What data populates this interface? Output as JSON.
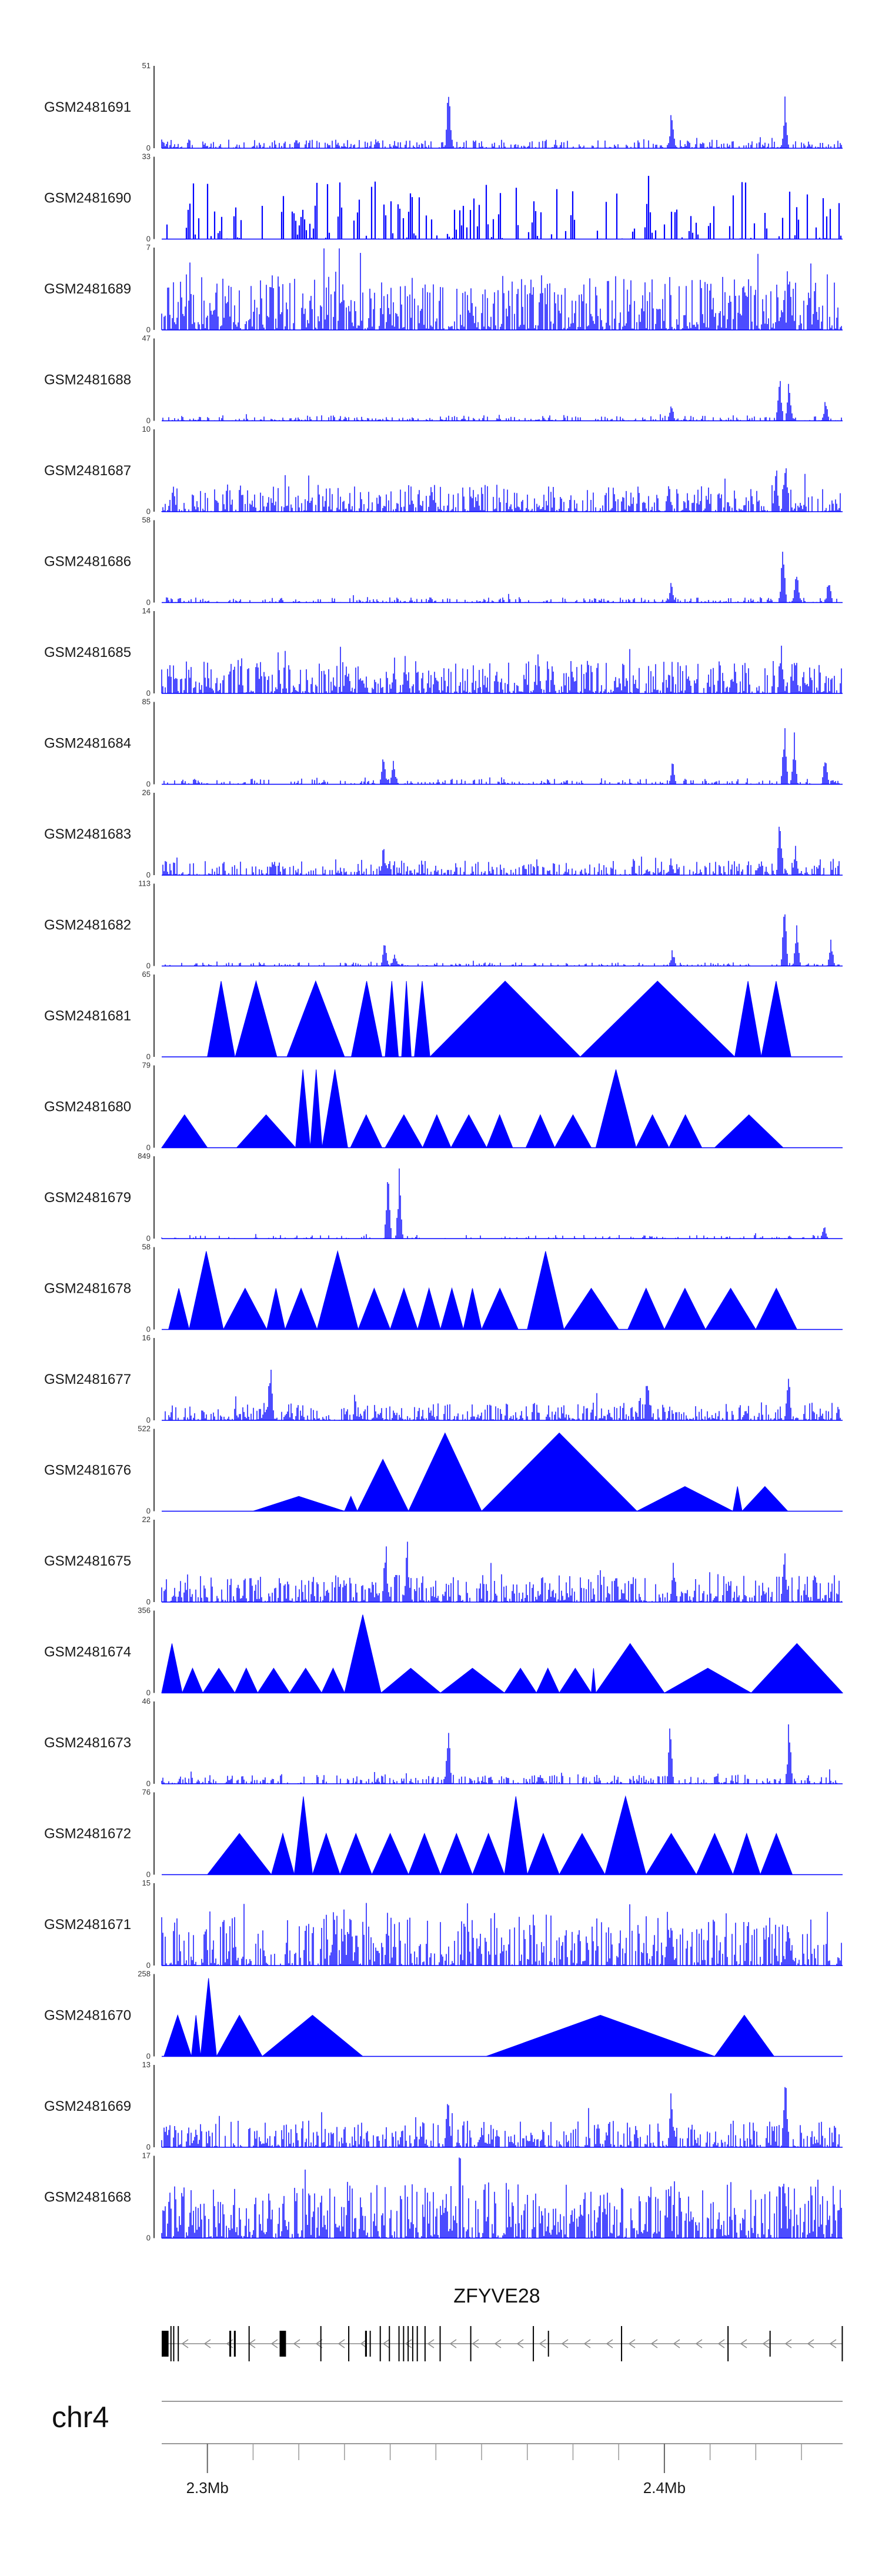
{
  "chart_data": {
    "type": "area",
    "title": "",
    "xlabel": "",
    "ylabel": "",
    "color": "#0000ff",
    "x_range_mb": [
      2.29,
      2.439
    ],
    "tracks": [
      {
        "name": "GSM2481691",
        "max": "51",
        "min": "0",
        "style": "dense",
        "density": 0.75,
        "base": 0.05,
        "peaks": [
          [
            2.3528,
            0.95
          ],
          [
            2.4016,
            0.6
          ],
          [
            2.4264,
            0.65
          ]
        ]
      },
      {
        "name": "GSM2481690",
        "max": "33",
        "min": "0",
        "style": "spiky",
        "density": 0.35,
        "base": 0.2,
        "peaks": [
          [
            2.3445,
            0.95
          ],
          [
            2.3965,
            0.95
          ]
        ]
      },
      {
        "name": "GSM2481689",
        "max": "7",
        "min": "0",
        "style": "dense",
        "density": 0.95,
        "base": 0.3,
        "peaks": [
          [
            2.4273,
            0.97
          ],
          [
            2.433,
            0.7
          ]
        ]
      },
      {
        "name": "GSM2481688",
        "max": "47",
        "min": "0",
        "style": "dense",
        "density": 0.6,
        "base": 0.03,
        "peaks": [
          [
            2.4015,
            0.3
          ],
          [
            2.4252,
            0.85
          ],
          [
            2.4273,
            0.6
          ],
          [
            2.4353,
            0.3
          ]
        ]
      },
      {
        "name": "GSM2481687",
        "max": "10",
        "min": "0",
        "style": "dense",
        "density": 0.85,
        "base": 0.15,
        "peaks": [
          [
            2.401,
            0.4
          ],
          [
            2.4244,
            0.7
          ],
          [
            2.4265,
            0.85
          ]
        ]
      },
      {
        "name": "GSM2481686",
        "max": "58",
        "min": "0",
        "style": "dense",
        "density": 0.6,
        "base": 0.03,
        "peaks": [
          [
            2.4015,
            0.3
          ],
          [
            2.426,
            0.95
          ],
          [
            2.429,
            0.6
          ],
          [
            2.436,
            0.4
          ]
        ]
      },
      {
        "name": "GSM2481685",
        "max": "14",
        "min": "0",
        "style": "dense",
        "density": 0.9,
        "base": 0.18,
        "peaks": [
          [
            2.3433,
            0.5
          ],
          [
            2.4256,
            0.65
          ],
          [
            2.4287,
            0.5
          ]
        ]
      },
      {
        "name": "GSM2481684",
        "max": "85",
        "min": "0",
        "style": "dense",
        "density": 0.55,
        "base": 0.03,
        "peaks": [
          [
            2.3385,
            0.5
          ],
          [
            2.3407,
            0.35
          ],
          [
            2.4018,
            0.35
          ],
          [
            2.4263,
            0.95
          ],
          [
            2.4284,
            0.7
          ],
          [
            2.4352,
            0.5
          ]
        ]
      },
      {
        "name": "GSM2481683",
        "max": "26",
        "min": "0",
        "style": "dense",
        "density": 0.8,
        "base": 0.08,
        "peaks": [
          [
            2.3385,
            0.4
          ],
          [
            2.4015,
            0.25
          ],
          [
            2.4253,
            0.9
          ],
          [
            2.4287,
            0.4
          ]
        ]
      },
      {
        "name": "GSM2481682",
        "max": "113",
        "min": "0",
        "style": "dense",
        "density": 0.55,
        "base": 0.02,
        "peaks": [
          [
            2.3388,
            0.45
          ],
          [
            2.341,
            0.2
          ],
          [
            2.4018,
            0.25
          ],
          [
            2.4263,
            0.95
          ],
          [
            2.429,
            0.65
          ],
          [
            2.4365,
            0.4
          ]
        ]
      },
      {
        "name": "GSM2481681",
        "max": "65",
        "min": "0",
        "style": "tri",
        "peaks": [
          [
            2.3,
            2.306,
            0.92
          ],
          [
            2.3061,
            2.3152,
            0.92
          ],
          [
            2.3174,
            2.33,
            0.92
          ],
          [
            2.3315,
            2.3382,
            0.92
          ],
          [
            2.3389,
            2.3418,
            0.92
          ],
          [
            2.3425,
            2.3446,
            0.92
          ],
          [
            2.3453,
            2.3487,
            0.92
          ],
          [
            2.3487,
            2.3816,
            0.92
          ],
          [
            2.3816,
            2.4154,
            0.92
          ],
          [
            2.4154,
            2.4212,
            0.92
          ],
          [
            2.4212,
            2.4277,
            0.92
          ],
          [
            2.4277,
            2.429,
            0.0
          ]
        ]
      },
      {
        "name": "GSM2481680",
        "max": "79",
        "min": "0",
        "style": "tri",
        "peaks": [
          [
            2.29,
            2.3,
            0.4
          ],
          [
            2.3064,
            2.3193,
            0.4
          ],
          [
            2.3193,
            2.3225,
            0.95
          ],
          [
            2.3225,
            2.3251,
            0.95
          ],
          [
            2.3251,
            2.3307,
            0.95
          ],
          [
            2.3313,
            2.3382,
            0.4
          ],
          [
            2.3389,
            2.3471,
            0.4
          ],
          [
            2.3471,
            2.3533,
            0.4
          ],
          [
            2.3533,
            2.3611,
            0.4
          ],
          [
            2.3611,
            2.3668,
            0.4
          ],
          [
            2.3697,
            2.376,
            0.4
          ],
          [
            2.376,
            2.384,
            0.4
          ],
          [
            2.385,
            2.3938,
            0.95
          ],
          [
            2.3938,
            2.401,
            0.4
          ],
          [
            2.401,
            2.4082,
            0.4
          ],
          [
            2.411,
            2.426,
            0.4
          ]
        ]
      },
      {
        "name": "GSM2481679",
        "max": "849",
        "min": "0",
        "style": "dense",
        "density": 0.3,
        "base": 0.02,
        "peaks": [
          [
            2.3395,
            0.95
          ],
          [
            2.342,
            0.9
          ],
          [
            2.435,
            0.25
          ]
        ]
      },
      {
        "name": "GSM2481678",
        "max": "58",
        "min": "0",
        "style": "tri",
        "peaks": [
          [
            2.2915,
            2.296,
            0.5
          ],
          [
            2.296,
            2.3035,
            0.95
          ],
          [
            2.3035,
            2.313,
            0.5
          ],
          [
            2.313,
            2.317,
            0.5
          ],
          [
            2.317,
            2.324,
            0.5
          ],
          [
            2.324,
            2.333,
            0.95
          ],
          [
            2.333,
            2.34,
            0.5
          ],
          [
            2.34,
            2.346,
            0.5
          ],
          [
            2.346,
            2.351,
            0.5
          ],
          [
            2.351,
            2.356,
            0.5
          ],
          [
            2.356,
            2.36,
            0.5
          ],
          [
            2.36,
            2.368,
            0.5
          ],
          [
            2.37,
            2.378,
            0.95
          ],
          [
            2.378,
            2.39,
            0.5
          ],
          [
            2.392,
            2.4,
            0.5
          ],
          [
            2.4,
            2.409,
            0.5
          ],
          [
            2.409,
            2.42,
            0.5
          ],
          [
            2.42,
            2.429,
            0.5
          ]
        ]
      },
      {
        "name": "GSM2481677",
        "max": "16",
        "min": "0",
        "style": "dense",
        "density": 0.85,
        "base": 0.1,
        "peaks": [
          [
            2.3138,
            0.95
          ],
          [
            2.3963,
            0.7
          ],
          [
            2.4271,
            0.8
          ]
        ]
      },
      {
        "name": "GSM2481676",
        "max": "522",
        "min": "0",
        "style": "tri",
        "peaks": [
          [
            2.31,
            2.33,
            0.18
          ],
          [
            2.33,
            2.3328,
            0.18
          ],
          [
            2.3328,
            2.344,
            0.63
          ],
          [
            2.344,
            2.36,
            0.95
          ],
          [
            2.36,
            2.394,
            0.95
          ],
          [
            2.394,
            2.415,
            0.3
          ],
          [
            2.415,
            2.417,
            0.3
          ],
          [
            2.417,
            2.427,
            0.3
          ],
          [
            2.427,
            2.429,
            0.0
          ]
        ]
      },
      {
        "name": "GSM2481675",
        "max": "22",
        "min": "0",
        "style": "dense",
        "density": 0.9,
        "base": 0.15,
        "peaks": [
          [
            2.339,
            0.9
          ],
          [
            2.3437,
            0.85
          ],
          [
            2.402,
            0.7
          ],
          [
            2.4263,
            0.8
          ]
        ]
      },
      {
        "name": "GSM2481674",
        "max": "356",
        "min": "0",
        "style": "tri",
        "peaks": [
          [
            2.29,
            2.2945,
            0.6
          ],
          [
            2.2945,
            2.299,
            0.3
          ],
          [
            2.299,
            2.306,
            0.3
          ],
          [
            2.306,
            2.311,
            0.3
          ],
          [
            2.311,
            2.318,
            0.3
          ],
          [
            2.318,
            2.325,
            0.3
          ],
          [
            2.325,
            2.33,
            0.3
          ],
          [
            2.33,
            2.338,
            0.95
          ],
          [
            2.338,
            2.351,
            0.3
          ],
          [
            2.351,
            2.365,
            0.3
          ],
          [
            2.365,
            2.372,
            0.3
          ],
          [
            2.372,
            2.377,
            0.3
          ],
          [
            2.377,
            2.384,
            0.3
          ],
          [
            2.384,
            2.385,
            0.3
          ],
          [
            2.385,
            2.4,
            0.6
          ],
          [
            2.4,
            2.419,
            0.3
          ],
          [
            2.419,
            2.439,
            0.6
          ]
        ]
      },
      {
        "name": "GSM2481673",
        "max": "46",
        "min": "0",
        "style": "dense",
        "density": 0.65,
        "base": 0.05,
        "peaks": [
          [
            2.3527,
            0.9
          ],
          [
            2.4013,
            0.85
          ],
          [
            2.4273,
            0.95
          ]
        ]
      },
      {
        "name": "GSM2481672",
        "max": "76",
        "min": "0",
        "style": "tri",
        "peaks": [
          [
            2.3,
            2.314,
            0.5
          ],
          [
            2.314,
            2.319,
            0.5
          ],
          [
            2.319,
            2.323,
            0.95
          ],
          [
            2.323,
            2.329,
            0.5
          ],
          [
            2.329,
            2.336,
            0.5
          ],
          [
            2.336,
            2.344,
            0.5
          ],
          [
            2.344,
            2.351,
            0.5
          ],
          [
            2.351,
            2.358,
            0.5
          ],
          [
            2.358,
            2.365,
            0.5
          ],
          [
            2.365,
            2.37,
            0.95
          ],
          [
            2.37,
            2.377,
            0.5
          ],
          [
            2.377,
            2.387,
            0.5
          ],
          [
            2.387,
            2.396,
            0.95
          ],
          [
            2.396,
            2.407,
            0.5
          ],
          [
            2.407,
            2.415,
            0.5
          ],
          [
            2.415,
            2.421,
            0.5
          ],
          [
            2.421,
            2.428,
            0.5
          ]
        ]
      },
      {
        "name": "GSM2481671",
        "max": "15",
        "min": "0",
        "style": "dense",
        "density": 0.8,
        "base": 0.3,
        "peaks": [
          [
            2.3312,
            0.95
          ],
          [
            2.4008,
            0.95
          ],
          [
            2.4271,
            0.8
          ]
        ]
      },
      {
        "name": "GSM2481670",
        "max": "258",
        "min": "0",
        "style": "tri",
        "peaks": [
          [
            2.2905,
            2.2965,
            0.5
          ],
          [
            2.2965,
            2.2985,
            0.5
          ],
          [
            2.2985,
            2.302,
            0.95
          ],
          [
            2.302,
            2.312,
            0.5
          ],
          [
            2.312,
            2.334,
            0.5
          ],
          [
            2.334,
            2.361,
            0.0
          ],
          [
            2.361,
            2.411,
            0.5
          ],
          [
            2.411,
            2.424,
            0.5
          ]
        ]
      },
      {
        "name": "GSM2481669",
        "max": "13",
        "min": "0",
        "style": "dense",
        "density": 0.85,
        "base": 0.15,
        "peaks": [
          [
            2.3527,
            0.85
          ],
          [
            2.4015,
            0.8
          ],
          [
            2.4265,
            0.95
          ]
        ]
      },
      {
        "name": "GSM2481668",
        "max": "17",
        "min": "0",
        "style": "dense",
        "density": 0.95,
        "base": 0.3,
        "peaks": [
          [
            2.3136,
            0.75
          ],
          [
            2.401,
            0.8
          ],
          [
            2.4263,
            0.95
          ]
        ]
      }
    ],
    "gene": {
      "name": "ZFYVE28",
      "strand": "-",
      "start_mb": 2.29,
      "end_mb": 2.439,
      "exons_mb": [
        [
          2.29,
          2.2915,
          2
        ],
        [
          2.2919,
          2.292,
          1
        ],
        [
          2.2925,
          2.2926,
          1
        ],
        [
          2.2935,
          2.2936,
          1
        ],
        [
          2.3048,
          2.3052,
          2
        ],
        [
          2.3058,
          2.3062,
          2
        ],
        [
          2.309,
          2.3091,
          1
        ],
        [
          2.3158,
          2.3172,
          2
        ],
        [
          2.3247,
          2.3248,
          1
        ],
        [
          2.3308,
          2.3309,
          1
        ],
        [
          2.3345,
          2.3349,
          2
        ],
        [
          2.3355,
          2.3357,
          2
        ],
        [
          2.3377,
          2.3378,
          1
        ],
        [
          2.3397,
          2.3398,
          1
        ],
        [
          2.3418,
          2.3419,
          1
        ],
        [
          2.3428,
          2.3429,
          1
        ],
        [
          2.3438,
          2.344,
          1
        ],
        [
          2.3448,
          2.345,
          1
        ],
        [
          2.3458,
          2.346,
          1
        ],
        [
          2.3475,
          2.3476,
          1
        ],
        [
          2.3508,
          2.3509,
          1
        ],
        [
          2.3575,
          2.3576,
          1
        ],
        [
          2.3712,
          2.3713,
          1
        ],
        [
          2.3745,
          2.3747,
          2
        ],
        [
          2.3905,
          2.3906,
          1
        ],
        [
          2.4138,
          2.4139,
          1
        ],
        [
          2.423,
          2.4232,
          2
        ],
        [
          2.4388,
          2.439,
          1
        ]
      ]
    },
    "chromosome": "chr4",
    "axis_ticks": [
      {
        "pos_mb": 2.3,
        "label": "2.3Mb"
      },
      {
        "pos_mb": 2.4,
        "label": "2.4Mb"
      }
    ],
    "minor_ticks_mb": [
      2.29,
      2.3,
      2.31,
      2.32,
      2.33,
      2.34,
      2.35,
      2.36,
      2.37,
      2.38,
      2.39,
      2.4,
      2.41,
      2.42,
      2.43
    ]
  }
}
